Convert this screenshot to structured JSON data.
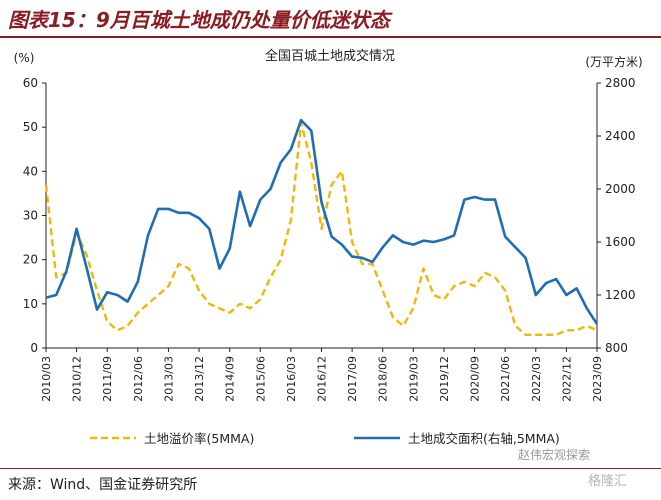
{
  "header": {
    "title": "图表15：9月百城土地成仍处量价低迷状态"
  },
  "source": "来源：Wind、国金证券研究所",
  "watermarks": [
    "赵伟宏观探索",
    "格隆汇"
  ],
  "colors": {
    "premium": "#f2b705",
    "area": "#1f6db3",
    "title": "#8a1c22"
  },
  "chart_data": {
    "type": "line",
    "title": "全国百城土地成交情况",
    "y_left_unit": "(%)",
    "y_right_unit": "(万平方米)",
    "y_left_range": [
      0,
      60
    ],
    "y_right_range": [
      800,
      2800
    ],
    "y_left_ticks": [
      "0",
      "10",
      "20",
      "30",
      "40",
      "50",
      "60"
    ],
    "y_right_ticks": [
      "800",
      "1200",
      "1600",
      "2000",
      "2400",
      "2800"
    ],
    "x_ticks": [
      "2010/03",
      "2010/12",
      "2011/09",
      "2012/06",
      "2013/03",
      "2013/12",
      "2014/09",
      "2015/06",
      "2016/03",
      "2016/12",
      "2017/09",
      "2018/06",
      "2019/03",
      "2019/12",
      "2020/09",
      "2021/06",
      "2022/03",
      "2022/12",
      "2023/09"
    ],
    "x_range": [
      "2010/03",
      "2023/09"
    ],
    "legend_position": "bottom",
    "series": [
      {
        "name": "土地溢价率(5MMA)",
        "axis": "left",
        "style": "dashed",
        "values": [
          [
            "2010/03",
            37
          ],
          [
            "2010/06",
            16
          ],
          [
            "2010/09",
            17
          ],
          [
            "2010/12",
            26
          ],
          [
            "2011/03",
            21
          ],
          [
            "2011/06",
            13
          ],
          [
            "2011/09",
            6
          ],
          [
            "2011/12",
            4
          ],
          [
            "2012/03",
            5
          ],
          [
            "2012/06",
            8
          ],
          [
            "2012/09",
            10
          ],
          [
            "2012/12",
            12
          ],
          [
            "2013/03",
            14
          ],
          [
            "2013/06",
            19
          ],
          [
            "2013/09",
            18
          ],
          [
            "2013/12",
            13
          ],
          [
            "2014/03",
            10
          ],
          [
            "2014/06",
            9
          ],
          [
            "2014/09",
            8
          ],
          [
            "2014/12",
            10
          ],
          [
            "2015/03",
            9
          ],
          [
            "2015/06",
            11
          ],
          [
            "2015/09",
            16
          ],
          [
            "2015/12",
            20
          ],
          [
            "2016/03",
            29
          ],
          [
            "2016/06",
            51
          ],
          [
            "2016/09",
            42
          ],
          [
            "2016/12",
            27
          ],
          [
            "2017/03",
            37
          ],
          [
            "2017/06",
            40
          ],
          [
            "2017/09",
            24
          ],
          [
            "2017/12",
            19
          ],
          [
            "2018/03",
            19
          ],
          [
            "2018/06",
            13
          ],
          [
            "2018/09",
            7
          ],
          [
            "2018/12",
            5
          ],
          [
            "2019/03",
            9
          ],
          [
            "2019/06",
            18
          ],
          [
            "2019/09",
            12
          ],
          [
            "2019/12",
            11
          ],
          [
            "2020/03",
            14
          ],
          [
            "2020/06",
            15
          ],
          [
            "2020/09",
            14
          ],
          [
            "2020/12",
            17
          ],
          [
            "2021/03",
            16
          ],
          [
            "2021/06",
            13
          ],
          [
            "2021/09",
            5
          ],
          [
            "2021/12",
            3
          ],
          [
            "2022/03",
            3
          ],
          [
            "2022/06",
            3
          ],
          [
            "2022/09",
            3
          ],
          [
            "2022/12",
            4
          ],
          [
            "2023/03",
            4
          ],
          [
            "2023/06",
            5
          ],
          [
            "2023/09",
            4
          ]
        ]
      },
      {
        "name": "土地成交面积(右轴,5MMA)",
        "axis": "right",
        "style": "solid",
        "values": [
          [
            "2010/03",
            1180
          ],
          [
            "2010/06",
            1200
          ],
          [
            "2010/09",
            1380
          ],
          [
            "2010/12",
            1700
          ],
          [
            "2011/03",
            1400
          ],
          [
            "2011/06",
            1090
          ],
          [
            "2011/09",
            1220
          ],
          [
            "2011/12",
            1200
          ],
          [
            "2012/03",
            1150
          ],
          [
            "2012/06",
            1300
          ],
          [
            "2012/09",
            1650
          ],
          [
            "2012/12",
            1850
          ],
          [
            "2013/03",
            1850
          ],
          [
            "2013/06",
            1820
          ],
          [
            "2013/09",
            1820
          ],
          [
            "2013/12",
            1780
          ],
          [
            "2014/03",
            1700
          ],
          [
            "2014/06",
            1400
          ],
          [
            "2014/09",
            1550
          ],
          [
            "2014/12",
            1980
          ],
          [
            "2015/03",
            1720
          ],
          [
            "2015/06",
            1920
          ],
          [
            "2015/09",
            2000
          ],
          [
            "2015/12",
            2200
          ],
          [
            "2016/03",
            2300
          ],
          [
            "2016/06",
            2520
          ],
          [
            "2016/09",
            2440
          ],
          [
            "2016/12",
            1900
          ],
          [
            "2017/03",
            1640
          ],
          [
            "2017/06",
            1580
          ],
          [
            "2017/09",
            1490
          ],
          [
            "2017/12",
            1480
          ],
          [
            "2018/03",
            1450
          ],
          [
            "2018/06",
            1560
          ],
          [
            "2018/09",
            1650
          ],
          [
            "2018/12",
            1600
          ],
          [
            "2019/03",
            1580
          ],
          [
            "2019/06",
            1610
          ],
          [
            "2019/09",
            1600
          ],
          [
            "2019/12",
            1620
          ],
          [
            "2020/03",
            1650
          ],
          [
            "2020/06",
            1920
          ],
          [
            "2020/09",
            1940
          ],
          [
            "2020/12",
            1920
          ],
          [
            "2021/03",
            1920
          ],
          [
            "2021/06",
            1640
          ],
          [
            "2021/09",
            1560
          ],
          [
            "2021/12",
            1480
          ],
          [
            "2022/03",
            1200
          ],
          [
            "2022/06",
            1290
          ],
          [
            "2022/09",
            1320
          ],
          [
            "2022/12",
            1200
          ],
          [
            "2023/03",
            1250
          ],
          [
            "2023/06",
            1100
          ],
          [
            "2023/09",
            980
          ]
        ]
      }
    ]
  }
}
